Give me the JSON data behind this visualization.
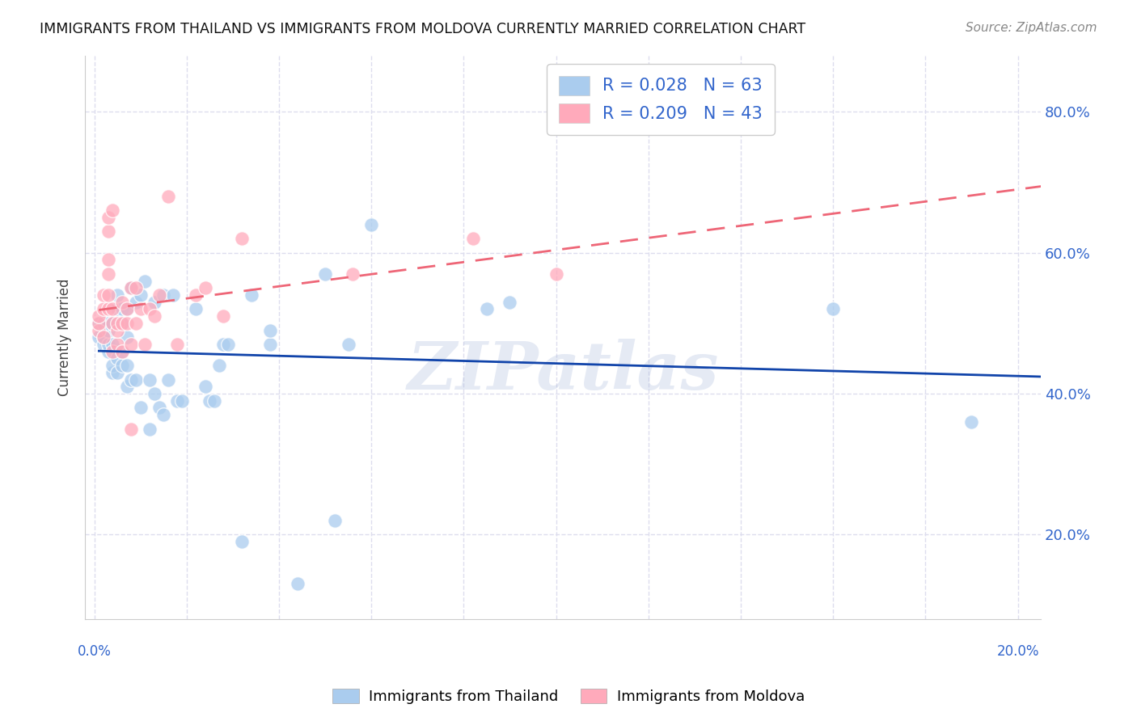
{
  "title": "IMMIGRANTS FROM THAILAND VS IMMIGRANTS FROM MOLDOVA CURRENTLY MARRIED CORRELATION CHART",
  "source": "Source: ZipAtlas.com",
  "ylabel": "Currently Married",
  "yticks": [
    0.2,
    0.4,
    0.6,
    0.8
  ],
  "ytick_labels": [
    "20.0%",
    "40.0%",
    "60.0%",
    "80.0%"
  ],
  "xlim": [
    -0.002,
    0.205
  ],
  "ylim": [
    0.08,
    0.88
  ],
  "legend_R_thailand": "R = 0.028",
  "legend_N_thailand": "N = 63",
  "legend_R_moldova": "R = 0.209",
  "legend_N_moldova": "N = 43",
  "color_thailand": "#AACCEE",
  "color_moldova": "#FFAABB",
  "color_trend_thailand": "#1144AA",
  "color_trend_moldova": "#EE6677",
  "thailand_x": [
    0.001,
    0.001,
    0.002,
    0.002,
    0.002,
    0.003,
    0.003,
    0.003,
    0.003,
    0.004,
    0.004,
    0.004,
    0.004,
    0.005,
    0.005,
    0.005,
    0.005,
    0.006,
    0.006,
    0.006,
    0.006,
    0.007,
    0.007,
    0.007,
    0.007,
    0.008,
    0.008,
    0.009,
    0.009,
    0.01,
    0.01,
    0.011,
    0.012,
    0.012,
    0.013,
    0.013,
    0.014,
    0.015,
    0.015,
    0.016,
    0.017,
    0.018,
    0.019,
    0.022,
    0.024,
    0.025,
    0.026,
    0.027,
    0.028,
    0.029,
    0.032,
    0.034,
    0.038,
    0.038,
    0.044,
    0.05,
    0.052,
    0.055,
    0.06,
    0.085,
    0.09,
    0.16,
    0.19
  ],
  "thailand_y": [
    0.48,
    0.5,
    0.47,
    0.48,
    0.5,
    0.46,
    0.47,
    0.49,
    0.5,
    0.43,
    0.44,
    0.47,
    0.5,
    0.43,
    0.45,
    0.52,
    0.54,
    0.44,
    0.46,
    0.5,
    0.52,
    0.41,
    0.44,
    0.48,
    0.52,
    0.55,
    0.42,
    0.42,
    0.53,
    0.38,
    0.54,
    0.56,
    0.35,
    0.42,
    0.4,
    0.53,
    0.38,
    0.37,
    0.54,
    0.42,
    0.54,
    0.39,
    0.39,
    0.52,
    0.41,
    0.39,
    0.39,
    0.44,
    0.47,
    0.47,
    0.19,
    0.54,
    0.47,
    0.49,
    0.13,
    0.57,
    0.22,
    0.47,
    0.64,
    0.52,
    0.53,
    0.52,
    0.36
  ],
  "moldova_x": [
    0.001,
    0.001,
    0.001,
    0.002,
    0.002,
    0.002,
    0.003,
    0.003,
    0.003,
    0.003,
    0.003,
    0.003,
    0.004,
    0.004,
    0.004,
    0.004,
    0.005,
    0.005,
    0.005,
    0.006,
    0.006,
    0.006,
    0.007,
    0.007,
    0.008,
    0.008,
    0.008,
    0.009,
    0.009,
    0.01,
    0.011,
    0.012,
    0.013,
    0.014,
    0.016,
    0.018,
    0.022,
    0.024,
    0.028,
    0.032,
    0.056,
    0.082,
    0.1
  ],
  "moldova_y": [
    0.49,
    0.5,
    0.51,
    0.48,
    0.52,
    0.54,
    0.52,
    0.54,
    0.57,
    0.59,
    0.63,
    0.65,
    0.46,
    0.5,
    0.52,
    0.66,
    0.47,
    0.49,
    0.5,
    0.46,
    0.5,
    0.53,
    0.5,
    0.52,
    0.35,
    0.47,
    0.55,
    0.5,
    0.55,
    0.52,
    0.47,
    0.52,
    0.51,
    0.54,
    0.68,
    0.47,
    0.54,
    0.55,
    0.51,
    0.62,
    0.57,
    0.62,
    0.57
  ],
  "background_color": "#FFFFFF",
  "grid_color": "#DDDDEE",
  "watermark": "ZIPatlas",
  "watermark_color": "#AABBDD",
  "legend_text_color": "#3366CC"
}
